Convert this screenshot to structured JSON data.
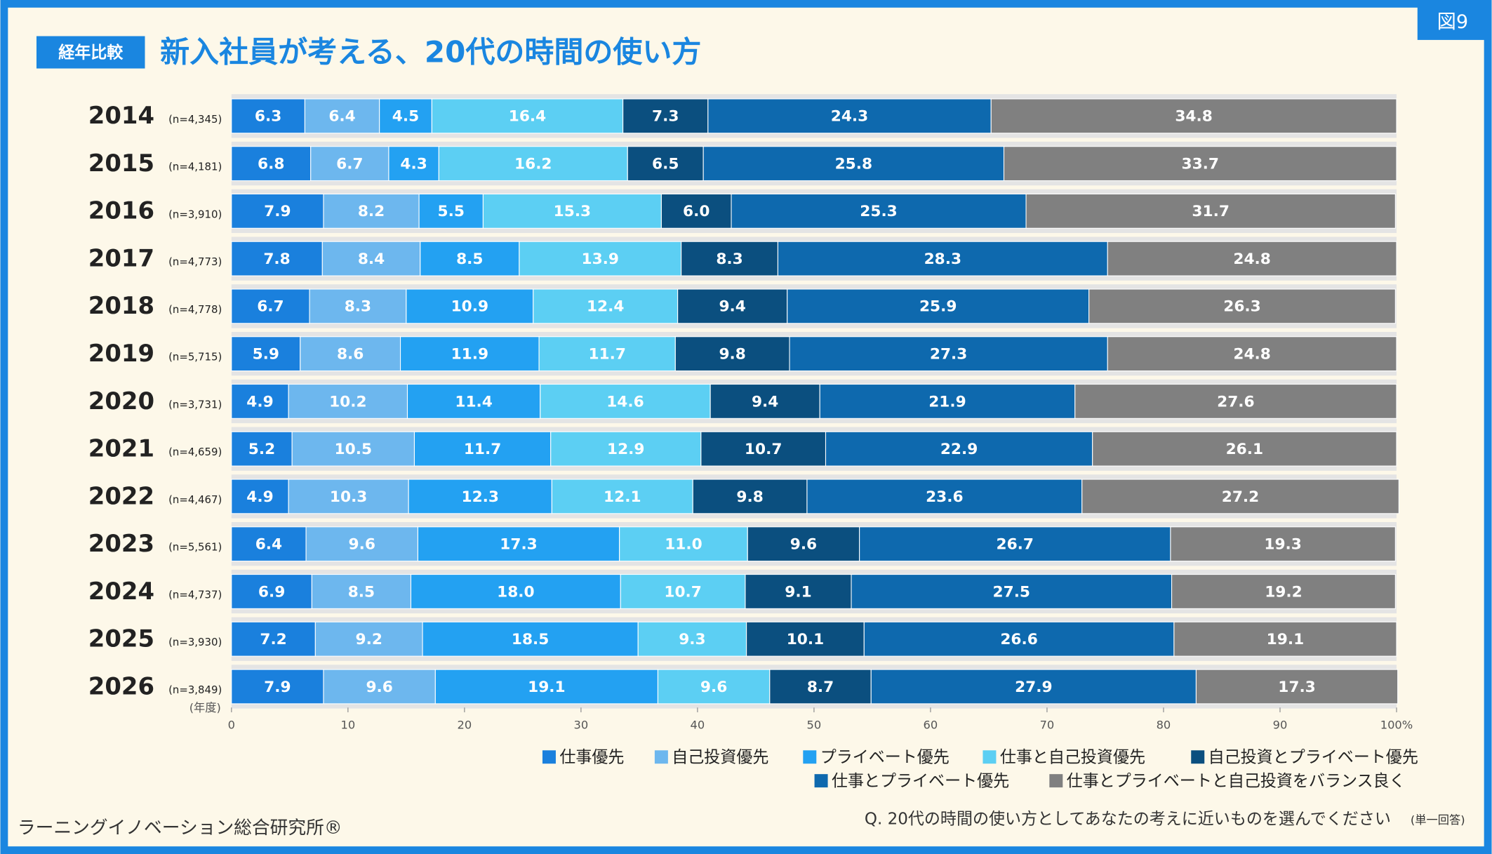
{
  "chart_data": {
    "type": "stacked_bar_horizontal",
    "figure_label": "図9",
    "badge": "経年比較",
    "title": "新入社員が考える、20代の時間の使い方",
    "categories": [
      "2014",
      "2015",
      "2016",
      "2017",
      "2018",
      "2019",
      "2020",
      "2021",
      "2022",
      "2023",
      "2024",
      "2025",
      "2026"
    ],
    "category_notes": [
      "(n=4,345)",
      "(n=4,181)",
      "(n=3,910)",
      "(n=4,773)",
      "(n=4,778)",
      "(n=5,715)",
      "(n=3,731)",
      "(n=4,659)",
      "(n=4,467)",
      "(n=5,561)",
      "(n=4,737)",
      "(n=3,930)",
      "(n=3,849)"
    ],
    "category_unit": "(年度)",
    "xlim": [
      0,
      100
    ],
    "xticks": [
      0,
      10,
      20,
      30,
      40,
      50,
      60,
      70,
      80,
      90,
      {
        "value": 100,
        "label": "100%"
      }
    ],
    "series": [
      {
        "name": "仕事優先",
        "color": "#1a80dd",
        "values": [
          6.3,
          6.8,
          7.9,
          7.8,
          6.7,
          5.9,
          4.9,
          5.2,
          4.9,
          6.4,
          6.9,
          7.2,
          7.9
        ],
        "value_labels": [
          "6.3",
          "6.8",
          "7.9",
          "7.8",
          "6.7",
          "5.9",
          "4.9",
          "5.2",
          "4.9",
          "6.4",
          "6.9",
          "7.2",
          "7.9"
        ]
      },
      {
        "name": "自己投資優先",
        "color": "#6db7ee",
        "values": [
          6.4,
          6.7,
          8.2,
          8.4,
          8.3,
          8.6,
          10.2,
          10.5,
          10.3,
          9.6,
          8.5,
          9.2,
          9.6
        ],
        "value_labels": [
          "6.4",
          "6.7",
          "8.2",
          "8.4",
          "8.3",
          "8.6",
          "10.2",
          "10.5",
          "10.3",
          "9.6",
          "8.5",
          "9.2",
          "9.6"
        ]
      },
      {
        "name": "プライベート優先",
        "color": "#23a1f2",
        "values": [
          4.5,
          4.3,
          5.5,
          8.5,
          10.9,
          11.9,
          11.4,
          11.7,
          12.3,
          17.3,
          18.0,
          18.5,
          19.1
        ],
        "value_labels": [
          "4.5",
          "4.3",
          "5.5",
          "8.5",
          "10.9",
          "11.9",
          "11.4",
          "11.7",
          "12.3",
          "17.3",
          "18.0",
          "18.5",
          "19.1"
        ]
      },
      {
        "name": "仕事と自己投資優先",
        "color": "#5ccff3",
        "values": [
          16.4,
          16.2,
          15.3,
          13.9,
          12.4,
          11.7,
          14.6,
          12.9,
          12.1,
          11.0,
          10.7,
          9.3,
          9.6
        ],
        "value_labels": [
          "16.4",
          "16.2",
          "15.3",
          "13.9",
          "12.4",
          "11.7",
          "14.6",
          "12.9",
          "12.1",
          "11.0",
          "10.7",
          "9.3",
          "9.6"
        ]
      },
      {
        "name": "自己投資とプライベート優先",
        "color": "#0b4f7f",
        "values": [
          7.3,
          6.5,
          6.0,
          8.3,
          9.4,
          9.8,
          9.4,
          10.7,
          9.8,
          9.6,
          9.1,
          10.1,
          8.7
        ],
        "value_labels": [
          "7.3",
          "6.5",
          "6.0",
          "8.3",
          "9.4",
          "9.8",
          "9.4",
          "10.7",
          "9.8",
          "9.6",
          "9.1",
          "10.1",
          "8.7"
        ]
      },
      {
        "name": "仕事とプライベート優先",
        "color": "#0e69ae",
        "values": [
          24.3,
          25.8,
          25.3,
          28.3,
          25.9,
          27.3,
          21.9,
          22.9,
          23.6,
          26.7,
          27.5,
          26.6,
          27.9
        ],
        "value_labels": [
          "24.3",
          "25.8",
          "25.3",
          "28.3",
          "25.9",
          "27.3",
          "21.9",
          "22.9",
          "23.6",
          "26.7",
          "27.5",
          "26.6",
          "27.9"
        ]
      },
      {
        "name": "仕事とプライベートと自己投資をバランス良く",
        "color": "#808080",
        "values": [
          34.8,
          33.7,
          31.7,
          24.8,
          26.3,
          24.8,
          27.6,
          26.1,
          27.2,
          19.3,
          19.2,
          19.1,
          17.3
        ],
        "value_labels": [
          "34.8",
          "33.7",
          "31.7",
          "24.8",
          "26.3",
          "24.8",
          "27.6",
          "26.1",
          "27.2",
          "19.3",
          "19.2",
          "19.1",
          "17.3"
        ]
      }
    ],
    "question": "Q. 20代の時間の使い方としてあなたの考えに近いものを選んでください",
    "question_note": "(単一回答)",
    "source": "ラーニングイノベーション総合研究所®"
  }
}
